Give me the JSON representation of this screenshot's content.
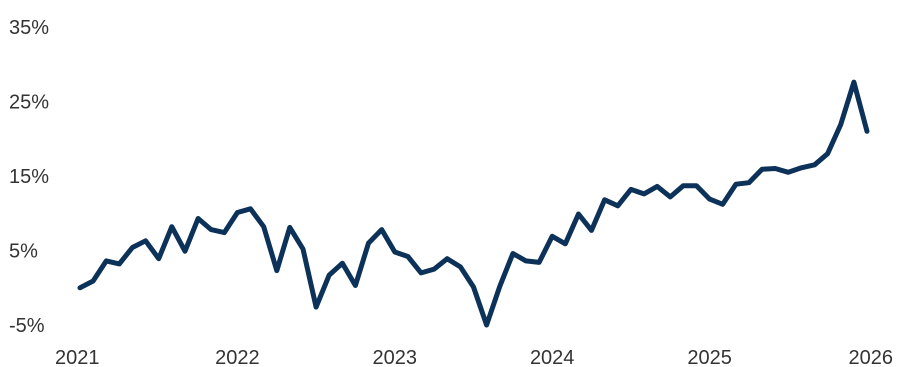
{
  "chart_data": {
    "type": "line",
    "title": "",
    "xlabel": "",
    "ylabel": "",
    "xlim": [
      2021,
      2026
    ],
    "ylim": [
      -5,
      35
    ],
    "grid": false,
    "legend": "none",
    "color": "#0c3259",
    "x_ticks": [
      2021,
      2022,
      2023,
      2024,
      2025,
      2026
    ],
    "x_tick_labels": [
      "2021",
      "2022",
      "2023",
      "2024",
      "2025",
      "2026"
    ],
    "y_ticks": [
      -5,
      5,
      15,
      25,
      35
    ],
    "y_tick_labels": [
      "-5%",
      "5%",
      "15%",
      "25%",
      "35%"
    ],
    "series": [
      {
        "x": [
          2021.0,
          2021.083,
          2021.167,
          2021.25,
          2021.333,
          2021.417,
          2021.5,
          2021.583,
          2021.667,
          2021.75,
          2021.833,
          2021.917,
          2022.0,
          2022.083,
          2022.167,
          2022.25,
          2022.333,
          2022.417,
          2022.5,
          2022.583,
          2022.667,
          2022.75,
          2022.833,
          2022.917,
          2023.0,
          2023.083,
          2023.167,
          2023.25,
          2023.333,
          2023.417,
          2023.5,
          2023.583,
          2023.667,
          2023.75,
          2023.833,
          2023.917,
          2024.0,
          2024.083,
          2024.167,
          2024.25,
          2024.333,
          2024.417,
          2024.5,
          2024.583,
          2024.667,
          2024.75,
          2024.833,
          2024.917,
          2025.0,
          2025.083,
          2025.167,
          2025.25,
          2025.333,
          2025.417,
          2025.5,
          2025.583,
          2025.667,
          2025.75,
          2025.833,
          2025.917,
          2026.0
        ],
        "y": [
          0.0,
          0.9,
          3.6,
          3.2,
          5.4,
          6.3,
          3.9,
          8.2,
          4.9,
          9.3,
          7.8,
          7.4,
          10.1,
          10.6,
          8.2,
          2.3,
          8.1,
          5.2,
          -2.6,
          1.7,
          3.3,
          0.3,
          6.0,
          7.8,
          4.8,
          4.2,
          2.0,
          2.5,
          3.9,
          2.8,
          0.1,
          -5.0,
          0.2,
          4.6,
          3.6,
          3.4,
          6.9,
          5.9,
          9.9,
          7.7,
          11.8,
          11.0,
          13.2,
          12.6,
          13.6,
          12.2,
          13.7,
          13.7,
          11.9,
          11.2,
          13.9,
          14.1,
          15.9,
          16.0,
          15.5,
          16.1,
          16.5,
          18.0,
          21.9,
          27.6,
          21.0
        ]
      }
    ]
  }
}
